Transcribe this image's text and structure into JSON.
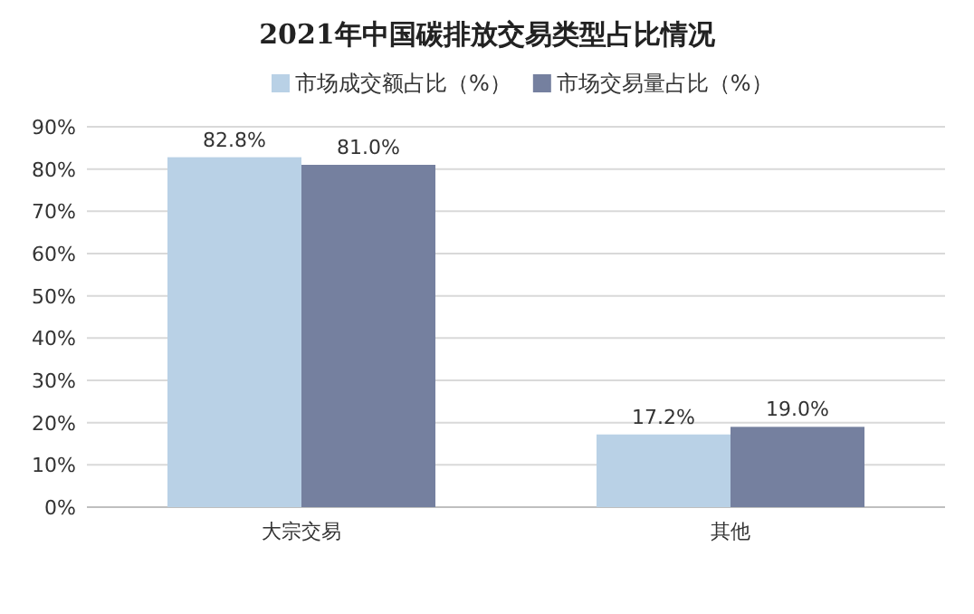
{
  "chart_data": {
    "type": "bar",
    "title": "2021年中国碳排放交易类型占比情况",
    "categories": [
      "大宗交易",
      "其他"
    ],
    "series": [
      {
        "name": "市场成交额占比（%）",
        "color": "#b9d1e6",
        "values": [
          82.8,
          17.2
        ],
        "value_labels": [
          "82.8%",
          "17.2%"
        ]
      },
      {
        "name": "市场交易量占比（%）",
        "color": "#75809f",
        "values": [
          81.0,
          19.0
        ],
        "value_labels": [
          "81.0%",
          "19.0%"
        ]
      }
    ],
    "ylim": [
      0,
      90
    ],
    "yticks": [
      {
        "value": 0,
        "label": "0%"
      },
      {
        "value": 10,
        "label": "10%"
      },
      {
        "value": 20,
        "label": "20%"
      },
      {
        "value": 30,
        "label": "30%"
      },
      {
        "value": 40,
        "label": "40%"
      },
      {
        "value": 50,
        "label": "50%"
      },
      {
        "value": 60,
        "label": "60%"
      },
      {
        "value": 70,
        "label": "70%"
      },
      {
        "value": 80,
        "label": "80%"
      },
      {
        "value": 90,
        "label": "90%"
      }
    ],
    "grid": "y",
    "legend": "top"
  }
}
